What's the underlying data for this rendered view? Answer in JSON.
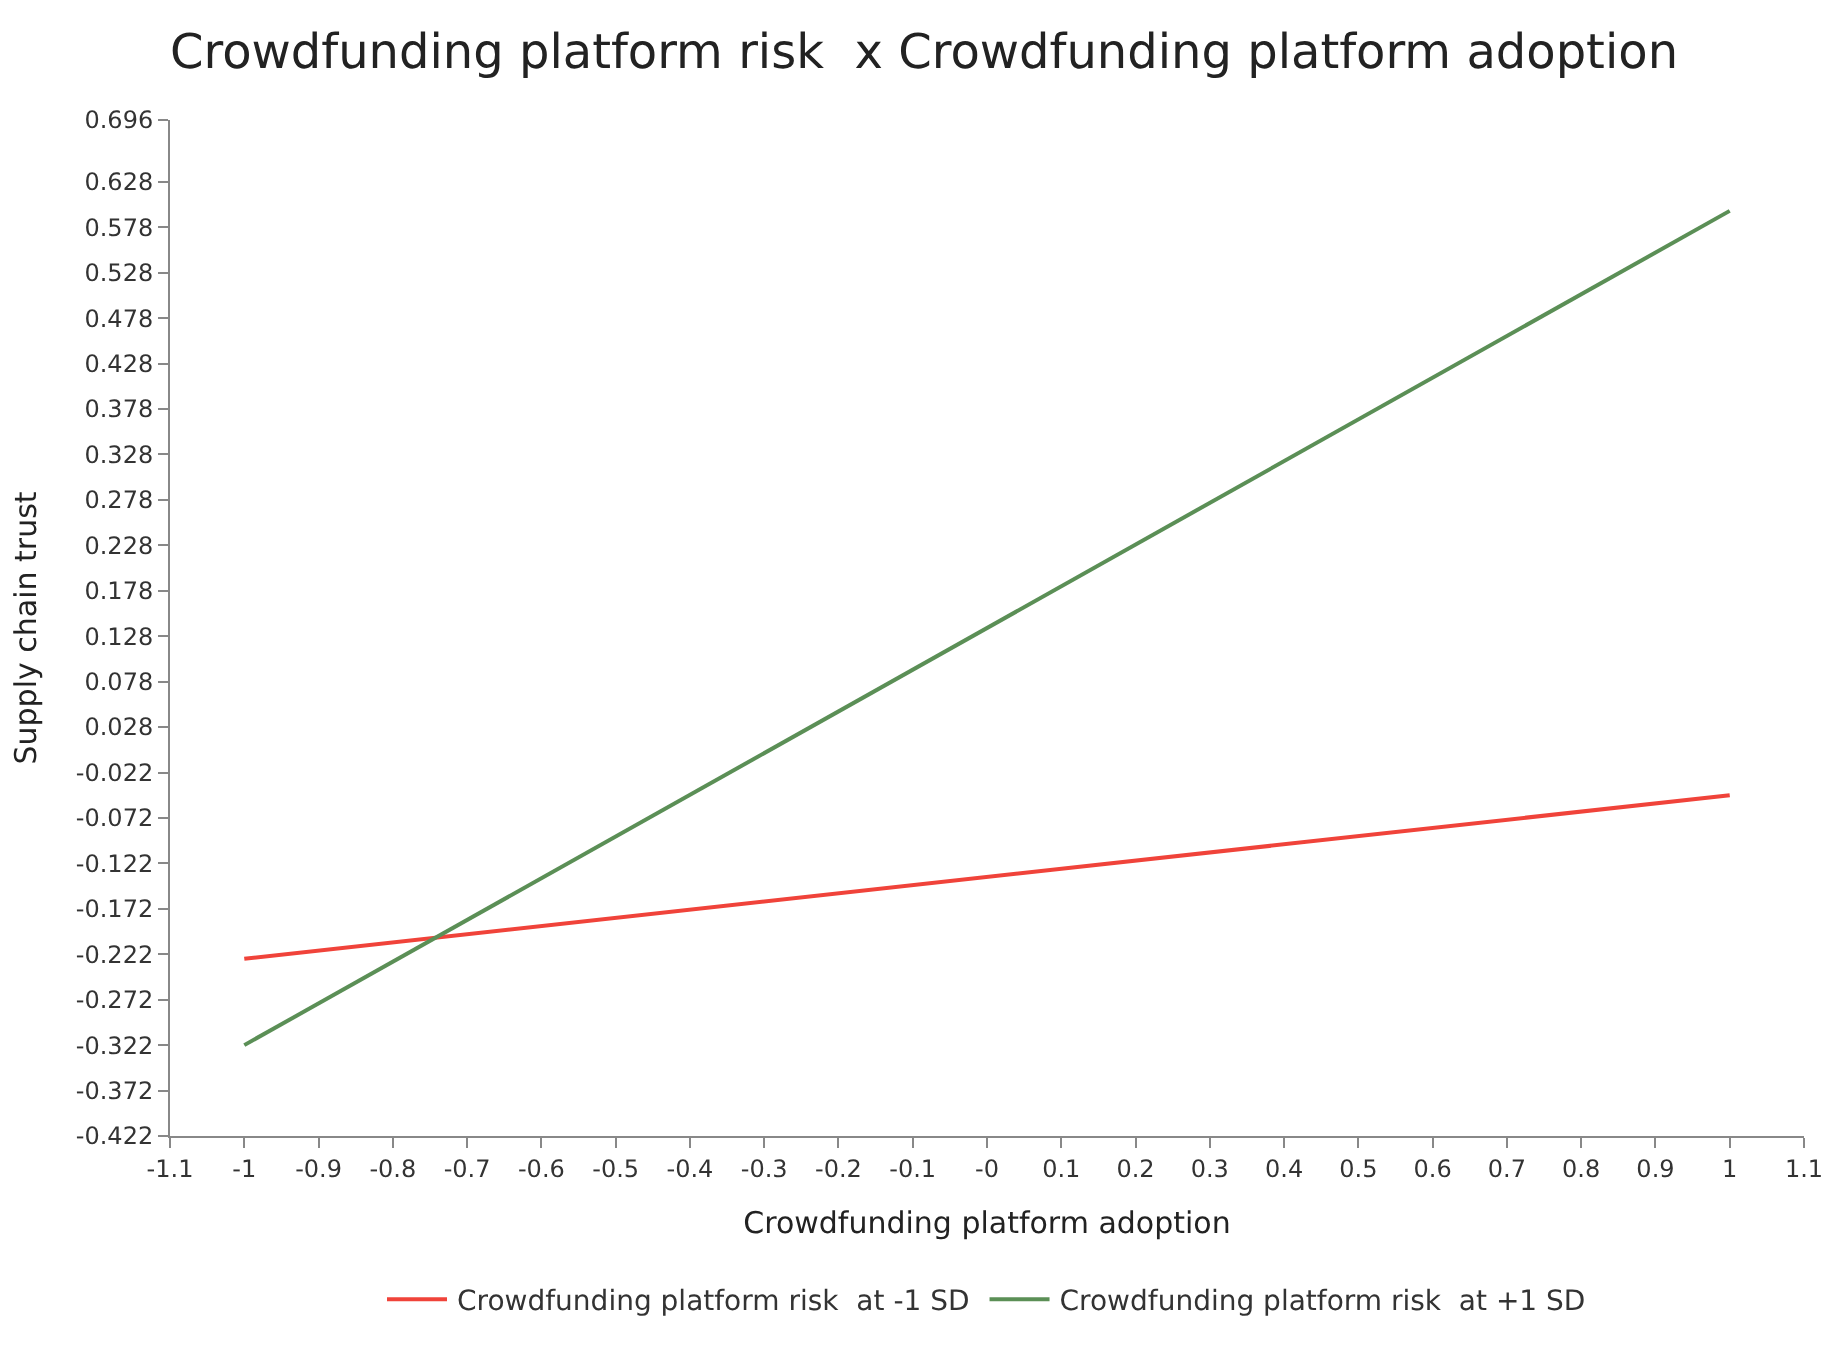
{
  "chart_data": {
    "type": "line",
    "title": "Crowdfunding platform risk  x Crowdfunding platform adoption",
    "xlabel": "Crowdfunding platform adoption",
    "ylabel": "Supply chain trust",
    "x": [
      -1,
      1
    ],
    "series": [
      {
        "name": "Crowdfunding platform risk  at -1 SD",
        "color": "#f0433a",
        "values": [
          -0.227,
          -0.047
        ]
      },
      {
        "name": "Crowdfunding platform risk  at +1 SD",
        "color": "#5b8f56",
        "values": [
          -0.322,
          0.596
        ]
      }
    ],
    "xlim": [
      -1.1,
      1.1
    ],
    "xticks": [
      -1.1,
      -1,
      -0.9,
      -0.8,
      -0.7,
      -0.6,
      -0.5,
      -0.4,
      -0.3,
      -0.2,
      -0.1,
      {
        "value": 0,
        "label": "-0"
      },
      0.1,
      0.2,
      0.3,
      0.4,
      0.5,
      0.6,
      0.7,
      0.8,
      0.9,
      1,
      1.1
    ],
    "ylim": [
      -0.422,
      0.696
    ],
    "yticks": [
      -0.422,
      -0.372,
      -0.322,
      -0.272,
      -0.222,
      -0.172,
      -0.122,
      -0.072,
      -0.022,
      0.028,
      0.078,
      0.128,
      0.178,
      0.228,
      0.278,
      0.328,
      0.378,
      0.428,
      0.478,
      0.528,
      0.578,
      0.628,
      0.696
    ],
    "legend": "bottom",
    "marker": "none",
    "line_style": "solid"
  }
}
